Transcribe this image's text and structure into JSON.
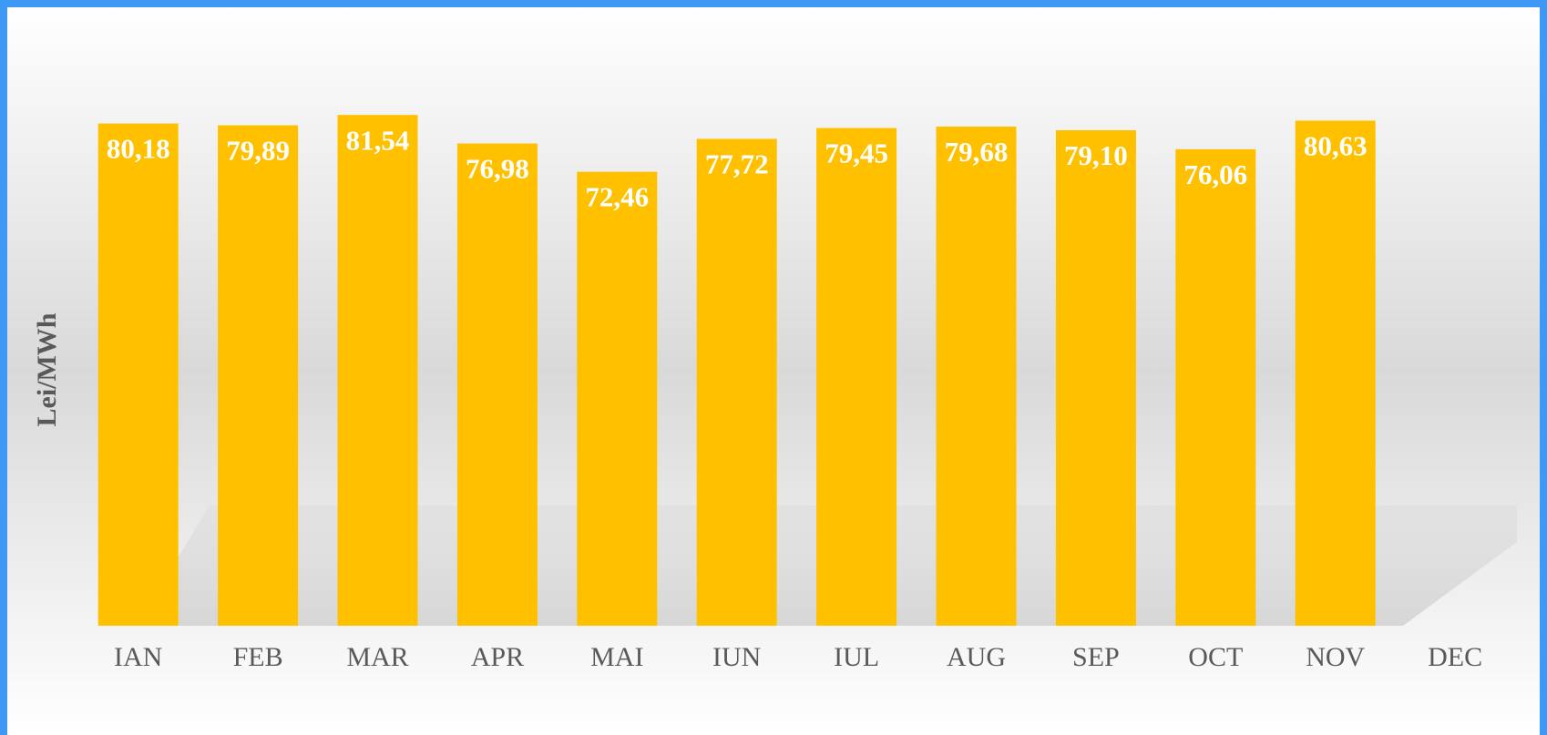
{
  "chart_data": {
    "type": "bar",
    "y_label": "Lei/MWh",
    "categories": [
      "IAN",
      "FEB",
      "MAR",
      "APR",
      "MAI",
      "IUN",
      "IUL",
      "AUG",
      "SEP",
      "OCT",
      "NOV",
      "DEC"
    ],
    "values": [
      80.18,
      79.89,
      81.54,
      76.98,
      72.46,
      77.72,
      79.45,
      79.68,
      79.1,
      76.06,
      80.63,
      null
    ],
    "value_labels": [
      "80,18",
      "79,89",
      "81,54",
      "76,98",
      "72,46",
      "77,72",
      "79,45",
      "79,68",
      "79,10",
      "76,06",
      "80,63",
      null
    ],
    "color": "#ffc000",
    "ylim": [
      0,
      90
    ]
  }
}
